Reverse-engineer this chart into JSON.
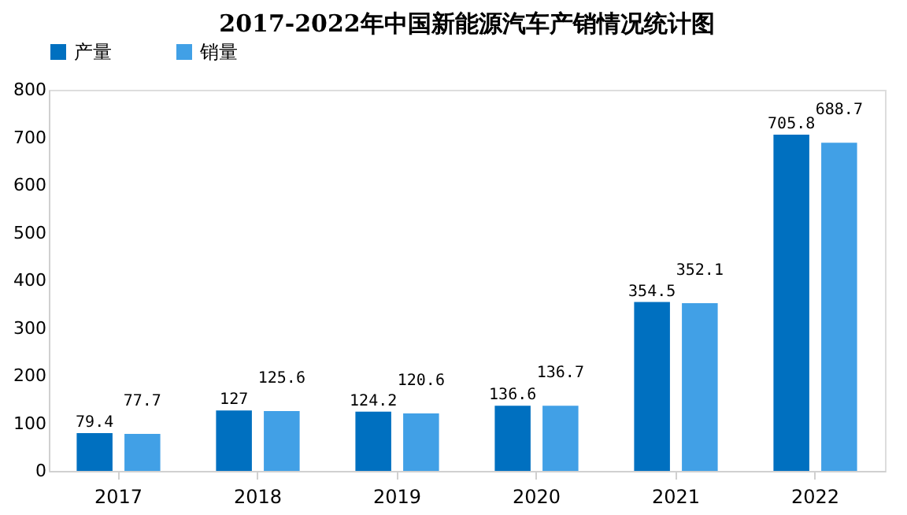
{
  "chart_data": {
    "type": "bar",
    "title": "2017-2022年中国新能源汽车产销情况统计图",
    "categories": [
      "2017",
      "2018",
      "2019",
      "2020",
      "2021",
      "2022"
    ],
    "series": [
      {
        "name": "产量",
        "color": "#0070c0",
        "values": [
          79.4,
          127,
          124.2,
          136.6,
          354.5,
          705.8
        ]
      },
      {
        "name": "销量",
        "color": "#41a0e6",
        "values": [
          77.7,
          125.6,
          120.6,
          136.7,
          352.1,
          688.7
        ]
      }
    ],
    "ylim": [
      0,
      800
    ],
    "yticks": [
      0,
      100,
      200,
      300,
      400,
      500,
      600,
      700,
      800
    ],
    "grid": false,
    "legend": "top",
    "data_labels": true
  }
}
